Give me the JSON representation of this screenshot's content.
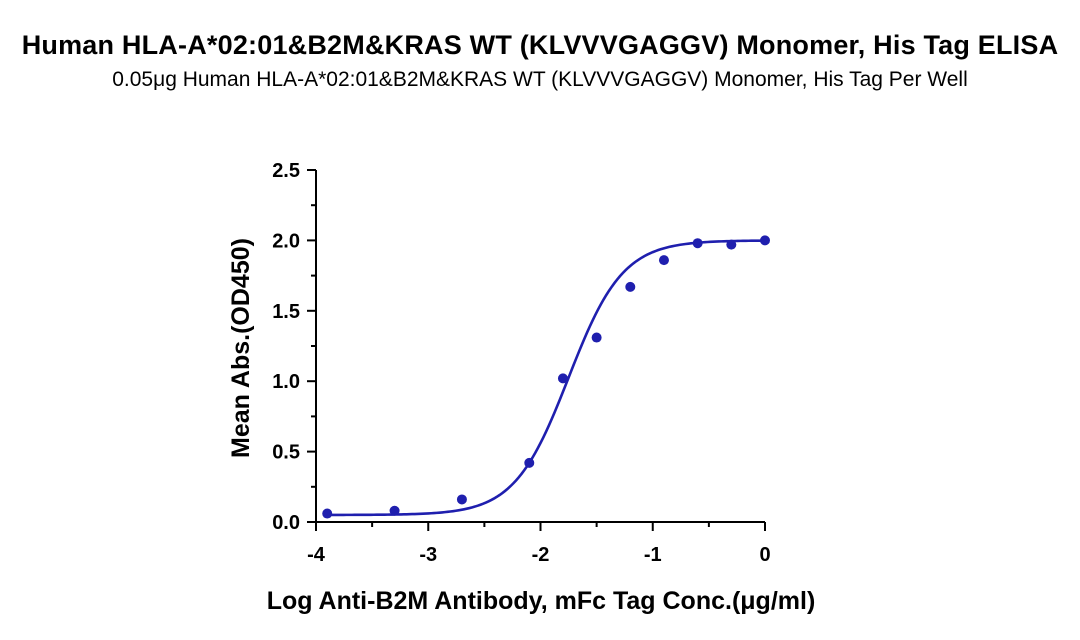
{
  "chart_data": {
    "type": "scatter",
    "title": "Human HLA-A*02:01&B2M&KRAS WT (KLVVVGAGGV) Monomer, His Tag ELISA",
    "subtitle": "0.05μg Human HLA-A*02:01&B2M&KRAS WT (KLVVVGAGGV) Monomer, His Tag Per Well",
    "xlabel": "Log Anti-B2M Antibody, mFc Tag Conc.(μg/ml)",
    "ylabel": "Mean Abs.(OD450)",
    "xlim": [
      -4,
      0
    ],
    "ylim": [
      0,
      2.5
    ],
    "x_ticks": [
      -4,
      -3,
      -2,
      -1,
      0
    ],
    "x_tick_labels": [
      "-4",
      "-3",
      "-2",
      "-1",
      "0"
    ],
    "y_ticks": [
      0,
      0.5,
      1.0,
      1.5,
      2.0,
      2.5
    ],
    "y_tick_labels": [
      "0.0",
      "0.5",
      "1.0",
      "1.5",
      "2.0",
      "2.5"
    ],
    "grid": false,
    "series": [
      {
        "color": "#1f1fae",
        "x": [
          -3.9,
          -3.3,
          -2.7,
          -2.1,
          -1.8,
          -1.5,
          -1.2,
          -0.9,
          -0.6,
          -0.3,
          0.0
        ],
        "y": [
          0.06,
          0.08,
          0.16,
          0.42,
          1.02,
          1.31,
          1.67,
          1.86,
          1.98,
          1.97,
          2.0
        ],
        "fit": "4PL",
        "fit_params": {
          "bottom": 0.05,
          "top": 2.0,
          "logEC50": -1.75,
          "hill": 1.8
        }
      }
    ]
  }
}
